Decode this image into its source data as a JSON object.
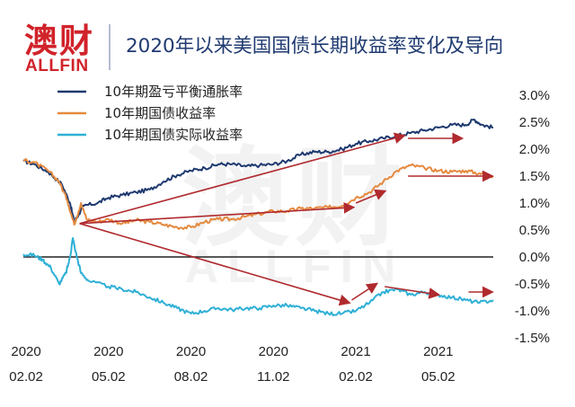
{
  "header": {
    "logo_cn": "澳财",
    "logo_en": "ALLFIN",
    "title": "2020年以来美国国债长期收益率变化及导向"
  },
  "watermark": {
    "cn": "澳财",
    "en": "ALLFIN"
  },
  "colors": {
    "brand_red": "#d1232a",
    "title_blue": "#1f3a70",
    "breakeven": "#1f3a70",
    "nominal": "#e58a3f",
    "real": "#2fb0d6",
    "arrow": "#b02a2e",
    "zero_line": "#222222"
  },
  "chart_data": {
    "type": "line",
    "ylim": [
      -1.5,
      3.0
    ],
    "y_ticks": [
      "3.0%",
      "2.5%",
      "2.0%",
      "1.5%",
      "1.0%",
      "0.5%",
      "0.0%",
      "-0.5%",
      "-1.0%",
      "-1.5%"
    ],
    "y_tick_values": [
      3.0,
      2.5,
      2.0,
      1.5,
      1.0,
      0.5,
      0.0,
      -0.5,
      -1.0,
      -1.5
    ],
    "x_ticks": [
      {
        "month": 0,
        "year": "2020",
        "date": "02.02"
      },
      {
        "month": 3,
        "year": "2020",
        "date": "05.02"
      },
      {
        "month": 6,
        "year": "2020",
        "date": "08.02"
      },
      {
        "month": 9,
        "year": "2020",
        "date": "11.02"
      },
      {
        "month": 12,
        "year": "2021",
        "date": "02.02"
      },
      {
        "month": 15,
        "year": "2021",
        "date": "05.02"
      }
    ],
    "xlim": [
      -0.1,
      17.0
    ],
    "grid": false,
    "legend_position": "top-left",
    "series": [
      {
        "name": "10年期盈亏平衡通胀率",
        "color": "#1f3a70",
        "points": [
          [
            -0.1,
            1.78
          ],
          [
            0.3,
            1.72
          ],
          [
            0.8,
            1.58
          ],
          [
            1.3,
            1.35
          ],
          [
            1.6,
            1.0
          ],
          [
            1.75,
            0.65
          ],
          [
            1.9,
            0.78
          ],
          [
            2.1,
            0.95
          ],
          [
            2.6,
            1.0
          ],
          [
            3.0,
            1.1
          ],
          [
            3.5,
            1.15
          ],
          [
            4.0,
            1.2
          ],
          [
            4.5,
            1.25
          ],
          [
            5.0,
            1.4
          ],
          [
            5.5,
            1.52
          ],
          [
            6.0,
            1.6
          ],
          [
            6.5,
            1.65
          ],
          [
            7.0,
            1.72
          ],
          [
            7.5,
            1.72
          ],
          [
            8.0,
            1.68
          ],
          [
            8.5,
            1.7
          ],
          [
            9.0,
            1.72
          ],
          [
            9.5,
            1.78
          ],
          [
            10.0,
            1.9
          ],
          [
            10.5,
            1.95
          ],
          [
            11.0,
            1.95
          ],
          [
            11.5,
            2.0
          ],
          [
            12.0,
            2.1
          ],
          [
            12.5,
            2.15
          ],
          [
            13.0,
            2.2
          ],
          [
            13.5,
            2.25
          ],
          [
            14.0,
            2.3
          ],
          [
            14.5,
            2.35
          ],
          [
            15.0,
            2.4
          ],
          [
            15.5,
            2.45
          ],
          [
            16.0,
            2.45
          ],
          [
            16.3,
            2.55
          ],
          [
            16.6,
            2.45
          ],
          [
            17.0,
            2.4
          ]
        ]
      },
      {
        "name": "10年期国债收益率",
        "color": "#e58a3f",
        "points": [
          [
            -0.1,
            1.8
          ],
          [
            0.3,
            1.75
          ],
          [
            0.8,
            1.6
          ],
          [
            1.2,
            1.4
          ],
          [
            1.5,
            1.05
          ],
          [
            1.75,
            0.6
          ],
          [
            2.0,
            1.0
          ],
          [
            2.2,
            0.7
          ],
          [
            2.6,
            0.65
          ],
          [
            3.0,
            0.7
          ],
          [
            3.5,
            0.62
          ],
          [
            4.0,
            0.68
          ],
          [
            4.5,
            0.65
          ],
          [
            5.0,
            0.6
          ],
          [
            5.5,
            0.55
          ],
          [
            6.0,
            0.55
          ],
          [
            6.5,
            0.65
          ],
          [
            7.0,
            0.7
          ],
          [
            7.5,
            0.7
          ],
          [
            8.0,
            0.75
          ],
          [
            8.5,
            0.8
          ],
          [
            9.0,
            0.85
          ],
          [
            9.5,
            0.85
          ],
          [
            10.0,
            0.9
          ],
          [
            10.5,
            0.9
          ],
          [
            11.0,
            0.92
          ],
          [
            11.5,
            0.95
          ],
          [
            12.0,
            1.1
          ],
          [
            12.5,
            1.2
          ],
          [
            13.0,
            1.4
          ],
          [
            13.5,
            1.6
          ],
          [
            14.0,
            1.7
          ],
          [
            14.5,
            1.65
          ],
          [
            15.0,
            1.6
          ],
          [
            15.5,
            1.58
          ],
          [
            16.0,
            1.6
          ],
          [
            16.5,
            1.55
          ],
          [
            17.0,
            1.5
          ]
        ]
      },
      {
        "name": "10年期国债实际收益率",
        "color": "#2fb0d6",
        "points": [
          [
            -0.1,
            0.05
          ],
          [
            0.3,
            0.03
          ],
          [
            0.6,
            -0.05
          ],
          [
            0.9,
            -0.2
          ],
          [
            1.2,
            -0.5
          ],
          [
            1.45,
            -0.3
          ],
          [
            1.6,
            0.0
          ],
          [
            1.7,
            0.35
          ],
          [
            1.8,
            0.1
          ],
          [
            2.0,
            -0.3
          ],
          [
            2.3,
            -0.45
          ],
          [
            3.0,
            -0.55
          ],
          [
            3.5,
            -0.6
          ],
          [
            4.0,
            -0.65
          ],
          [
            4.5,
            -0.75
          ],
          [
            5.0,
            -0.85
          ],
          [
            5.5,
            -0.95
          ],
          [
            6.0,
            -1.05
          ],
          [
            6.5,
            -1.0
          ],
          [
            7.0,
            -0.95
          ],
          [
            7.5,
            -0.98
          ],
          [
            8.0,
            -0.95
          ],
          [
            8.5,
            -0.95
          ],
          [
            9.0,
            -0.9
          ],
          [
            9.5,
            -0.9
          ],
          [
            10.0,
            -0.95
          ],
          [
            10.5,
            -1.0
          ],
          [
            11.0,
            -1.05
          ],
          [
            11.5,
            -1.05
          ],
          [
            12.0,
            -1.0
          ],
          [
            12.5,
            -0.85
          ],
          [
            13.0,
            -0.65
          ],
          [
            13.5,
            -0.6
          ],
          [
            14.0,
            -0.7
          ],
          [
            14.5,
            -0.65
          ],
          [
            15.0,
            -0.7
          ],
          [
            15.5,
            -0.75
          ],
          [
            16.0,
            -0.8
          ],
          [
            16.5,
            -0.85
          ],
          [
            17.0,
            -0.8
          ]
        ]
      }
    ],
    "annotations": {
      "arrows": [
        {
          "from": [
            1.95,
            0.62
          ],
          "to": [
            13.75,
            2.25
          ]
        },
        {
          "from": [
            1.95,
            0.62
          ],
          "to": [
            11.9,
            0.92
          ]
        },
        {
          "from": [
            1.95,
            0.62
          ],
          "to": [
            11.75,
            -0.85
          ]
        },
        {
          "from": [
            12.0,
            1.0
          ],
          "to": [
            13.05,
            1.22
          ]
        },
        {
          "from": [
            13.9,
            2.2
          ],
          "to": [
            15.85,
            2.2
          ]
        },
        {
          "from": [
            13.9,
            1.5
          ],
          "to": [
            16.95,
            1.5
          ]
        },
        {
          "from": [
            11.85,
            -0.8
          ],
          "to": [
            12.75,
            -0.5
          ]
        },
        {
          "from": [
            13.05,
            -0.55
          ],
          "to": [
            15.0,
            -0.7
          ]
        },
        {
          "from": [
            16.1,
            -0.65
          ],
          "to": [
            16.95,
            -0.65
          ]
        }
      ]
    }
  }
}
